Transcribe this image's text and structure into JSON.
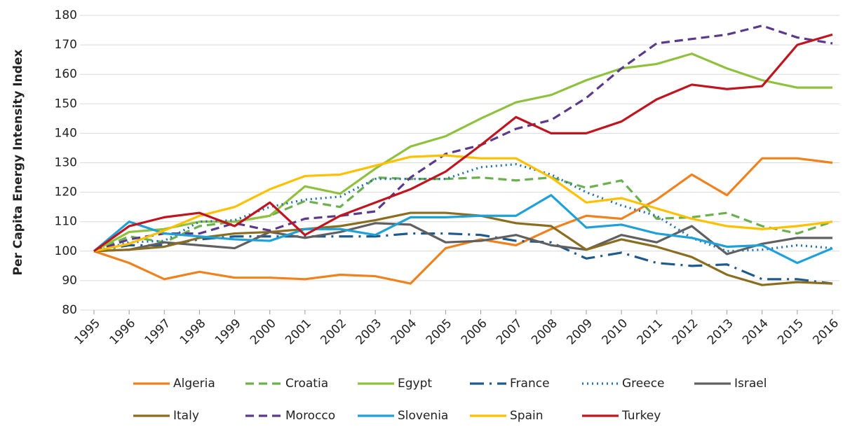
{
  "chart_data": {
    "type": "line",
    "y_label": "Per Capita Energy Intensity Index",
    "categories": [
      "1995",
      "1996",
      "1997",
      "1998",
      "1999",
      "2000",
      "2001",
      "2002",
      "2003",
      "2004",
      "2005",
      "2006",
      "2007",
      "2008",
      "2009",
      "2010",
      "2011",
      "2012",
      "2013",
      "2014",
      "2015",
      "2016"
    ],
    "ylim": [
      80,
      180
    ],
    "yticks": [
      80,
      90,
      100,
      110,
      120,
      130,
      140,
      150,
      160,
      170,
      180
    ],
    "grid": true,
    "legend": "bottom",
    "series": [
      {
        "name": "Algeria",
        "color": "#f0821e",
        "dash": "solid",
        "values": [
          100,
          96,
          90.5,
          93,
          91,
          91,
          90.5,
          92,
          91.5,
          89,
          101,
          104,
          102,
          107.5,
          112,
          111,
          117.5,
          126,
          119,
          131.5,
          131.5,
          130
        ]
      },
      {
        "name": "Croatia",
        "color": "#6ab04c",
        "dash": "dashed",
        "values": [
          100,
          105,
          103,
          108.5,
          110,
          112,
          117,
          115,
          125,
          124.5,
          124.5,
          125,
          124,
          125,
          121.5,
          124,
          111,
          111.5,
          113,
          108.5,
          106,
          110
        ]
      },
      {
        "name": "Egypt",
        "color": "#8fc13e",
        "dash": "solid",
        "values": [
          100,
          106.5,
          107.5,
          110,
          110,
          112,
          122,
          119.5,
          128,
          135.5,
          139,
          145,
          150.5,
          153,
          158,
          162,
          163.5,
          167,
          162,
          158,
          155.5,
          155.5
        ]
      },
      {
        "name": "France",
        "color": "#1f5a8c",
        "dash": "dashdot",
        "values": [
          100,
          102,
          102,
          104,
          105,
          105,
          105,
          105,
          105,
          106,
          106,
          105.5,
          103.5,
          103,
          97.5,
          99.5,
          96,
          95,
          95.5,
          90.5,
          90.5,
          89
        ]
      },
      {
        "name": "Greece",
        "color": "#1f6fb5",
        "dash": "dotted",
        "values": [
          100,
          103,
          103.5,
          110,
          110.5,
          115,
          117.5,
          118.5,
          124.5,
          124.5,
          124.5,
          128.5,
          129.5,
          126,
          120,
          115.5,
          112,
          104.5,
          100,
          100.5,
          102,
          101
        ]
      },
      {
        "name": "Israel",
        "color": "#606060",
        "dash": "solid",
        "values": [
          100,
          100.5,
          103,
          102,
          101,
          106.5,
          104.5,
          106.5,
          109.5,
          109,
          103,
          103.5,
          105.5,
          102,
          100.5,
          105.5,
          103,
          108.5,
          99,
          102.5,
          104.5,
          104.5
        ]
      },
      {
        "name": "Italy",
        "color": "#8a6d1e",
        "dash": "solid",
        "values": [
          100,
          100.5,
          101.5,
          104.5,
          106,
          106.5,
          107.5,
          108.5,
          110.5,
          113,
          113,
          112,
          109.5,
          108.5,
          100.5,
          104,
          101.5,
          98,
          92,
          88.5,
          89.5,
          89
        ]
      },
      {
        "name": "Morocco",
        "color": "#5b3a8c",
        "dash": "dashed",
        "values": [
          100,
          104,
          106,
          106,
          109.5,
          107,
          111,
          112,
          113.5,
          125,
          133,
          136,
          141.5,
          144.5,
          152,
          162,
          170.5,
          172,
          173.5,
          176.5,
          172.5,
          170.5
        ]
      },
      {
        "name": "Slovenia",
        "color": "#1ea0d8",
        "dash": "solid",
        "values": [
          100,
          110,
          106,
          105,
          104,
          103.5,
          107.5,
          107.5,
          105.5,
          111.5,
          111.5,
          112,
          112,
          119,
          108,
          109,
          106,
          104.5,
          101.5,
          102,
          96,
          101
        ]
      },
      {
        "name": "Spain",
        "color": "#ffc000",
        "dash": "solid",
        "values": [
          100,
          102.5,
          107,
          112,
          115,
          121,
          125.5,
          126,
          129,
          132,
          132.5,
          131.5,
          131.5,
          125,
          116.5,
          118,
          114.5,
          111,
          108.5,
          107.5,
          108.5,
          110
        ]
      },
      {
        "name": "Turkey",
        "color": "#c0141e",
        "dash": "solid",
        "values": [
          100,
          108.5,
          111.5,
          113,
          108.5,
          116.5,
          105.5,
          112,
          116.5,
          121,
          127,
          136,
          145.5,
          140,
          140,
          144,
          151.5,
          156.5,
          155,
          156,
          170,
          173.5
        ]
      }
    ]
  }
}
